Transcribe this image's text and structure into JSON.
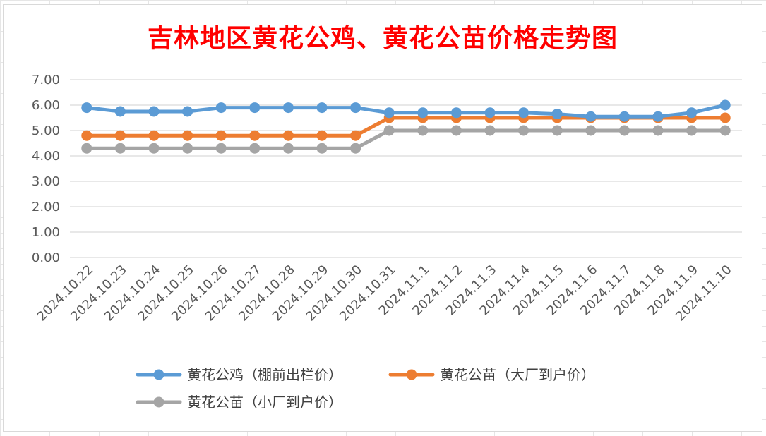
{
  "chart_data": {
    "type": "line",
    "title": "吉林地区黄花公鸡、黄花公苗价格走势图",
    "categories": [
      "2024.10.22",
      "2024.10.23",
      "2024.10.24",
      "2024.10.25",
      "2024.10.26",
      "2024.10.27",
      "2024.10.28",
      "2024.10.29",
      "2024.10.30",
      "2024.10.31",
      "2024.11.1",
      "2024.11.2",
      "2024.11.3",
      "2024.11.4",
      "2024.11.5",
      "2024.11.6",
      "2024.11.7",
      "2024.11.8",
      "2024.11.9",
      "2024.11.10"
    ],
    "ylim": [
      0,
      7
    ],
    "yticks": [
      "0.00",
      "1.00",
      "2.00",
      "3.00",
      "4.00",
      "5.00",
      "6.00",
      "7.00"
    ],
    "grid": true,
    "legend_position": "bottom",
    "series": [
      {
        "name": "黄花公鸡（棚前出栏价）",
        "color": "#5b9bd5",
        "values": [
          5.9,
          5.75,
          5.75,
          5.75,
          5.9,
          5.9,
          5.9,
          5.9,
          5.9,
          5.7,
          5.7,
          5.7,
          5.7,
          5.7,
          5.65,
          5.55,
          5.55,
          5.55,
          5.7,
          6.0
        ]
      },
      {
        "name": "黄花公苗（大厂到户价）",
        "color": "#ed7d31",
        "values": [
          4.8,
          4.8,
          4.8,
          4.8,
          4.8,
          4.8,
          4.8,
          4.8,
          4.8,
          5.5,
          5.5,
          5.5,
          5.5,
          5.5,
          5.5,
          5.5,
          5.5,
          5.5,
          5.5,
          5.5
        ]
      },
      {
        "name": "黄花公苗（小厂到户价）",
        "color": "#a5a5a5",
        "values": [
          4.3,
          4.3,
          4.3,
          4.3,
          4.3,
          4.3,
          4.3,
          4.3,
          4.3,
          5.0,
          5.0,
          5.0,
          5.0,
          5.0,
          5.0,
          5.0,
          5.0,
          5.0,
          5.0,
          5.0
        ]
      }
    ]
  }
}
